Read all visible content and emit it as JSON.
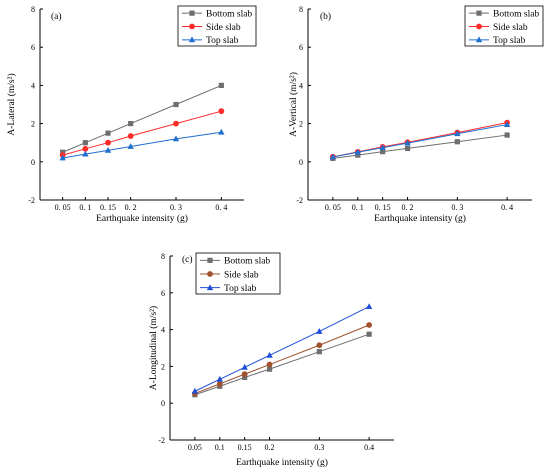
{
  "chart_data": [
    {
      "type": "line",
      "panel_label": "(a)",
      "xlabel": "Earthquake intensity (g)",
      "ylabel": "A-Lateral (m/s²)",
      "x": [
        0.05,
        0.1,
        0.15,
        0.2,
        0.3,
        0.4
      ],
      "x_tick_labels": [
        "0. 05",
        "0. 1",
        "0. 15",
        "0. 2",
        "0. 3",
        "0. 4"
      ],
      "xlim": [
        0.0,
        0.45
      ],
      "ylim": [
        -2,
        8
      ],
      "y_ticks": [
        -2,
        0,
        2,
        4,
        6,
        8
      ],
      "grid": false,
      "legend_position": "top-right",
      "series": [
        {
          "name": "Bottom slab",
          "color": "#6e6e6e",
          "marker": "square",
          "values": [
            0.5,
            1.0,
            1.5,
            2.0,
            3.0,
            4.0
          ]
        },
        {
          "name": "Side slab",
          "color": "#ff2a2a",
          "marker": "circle",
          "values": [
            0.35,
            0.68,
            1.0,
            1.35,
            2.0,
            2.65
          ]
        },
        {
          "name": "Top slab",
          "color": "#1f6fd0",
          "marker": "triangle",
          "values": [
            0.2,
            0.4,
            0.6,
            0.8,
            1.2,
            1.55
          ]
        }
      ]
    },
    {
      "type": "line",
      "panel_label": "(b)",
      "xlabel": "Earthquake intensity (g)",
      "ylabel": "A-Vertical (m/s²)",
      "x": [
        0.05,
        0.1,
        0.15,
        0.2,
        0.3,
        0.4
      ],
      "x_tick_labels": [
        "0. 05",
        "0. 1",
        "0. 15",
        "0. 2",
        "0. 3",
        "0. 4"
      ],
      "xlim": [
        0.0,
        0.45
      ],
      "ylim": [
        -2,
        8
      ],
      "y_ticks": [
        -2,
        0,
        2,
        4,
        6,
        8
      ],
      "grid": false,
      "legend_position": "top-right",
      "series": [
        {
          "name": "Bottom slab",
          "color": "#6e6e6e",
          "marker": "square",
          "values": [
            0.18,
            0.35,
            0.53,
            0.7,
            1.05,
            1.4
          ]
        },
        {
          "name": "Side slab",
          "color": "#ff2a2a",
          "marker": "circle",
          "values": [
            0.26,
            0.52,
            0.78,
            1.02,
            1.53,
            2.05
          ]
        },
        {
          "name": "Top slab",
          "color": "#1f6fd0",
          "marker": "triangle",
          "values": [
            0.25,
            0.5,
            0.74,
            0.98,
            1.47,
            1.95
          ]
        }
      ]
    },
    {
      "type": "line",
      "panel_label": "(c)",
      "xlabel": "Earthquake intensity (g)",
      "ylabel": "A-Longitudinal (m/s²)",
      "x": [
        0.05,
        0.1,
        0.15,
        0.2,
        0.3,
        0.4
      ],
      "x_tick_labels": [
        "0.05",
        "0.1",
        "0.15",
        "0.2",
        "0.3",
        "0.4"
      ],
      "xlim": [
        0.0,
        0.45
      ],
      "ylim": [
        -2,
        8
      ],
      "y_ticks": [
        -2,
        0,
        2,
        4,
        6,
        8
      ],
      "grid": false,
      "legend_position": "top-left",
      "series": [
        {
          "name": "Bottom slab",
          "color": "#6e6e6e",
          "marker": "square",
          "values": [
            0.46,
            0.92,
            1.4,
            1.85,
            2.8,
            3.75
          ]
        },
        {
          "name": "Side slab",
          "color": "#a0522d",
          "marker": "circle",
          "values": [
            0.53,
            1.05,
            1.58,
            2.1,
            3.15,
            4.25
          ]
        },
        {
          "name": "Top slab",
          "color": "#1f4fd8",
          "marker": "triangle",
          "values": [
            0.65,
            1.3,
            1.95,
            2.6,
            3.9,
            5.25
          ]
        }
      ]
    }
  ]
}
